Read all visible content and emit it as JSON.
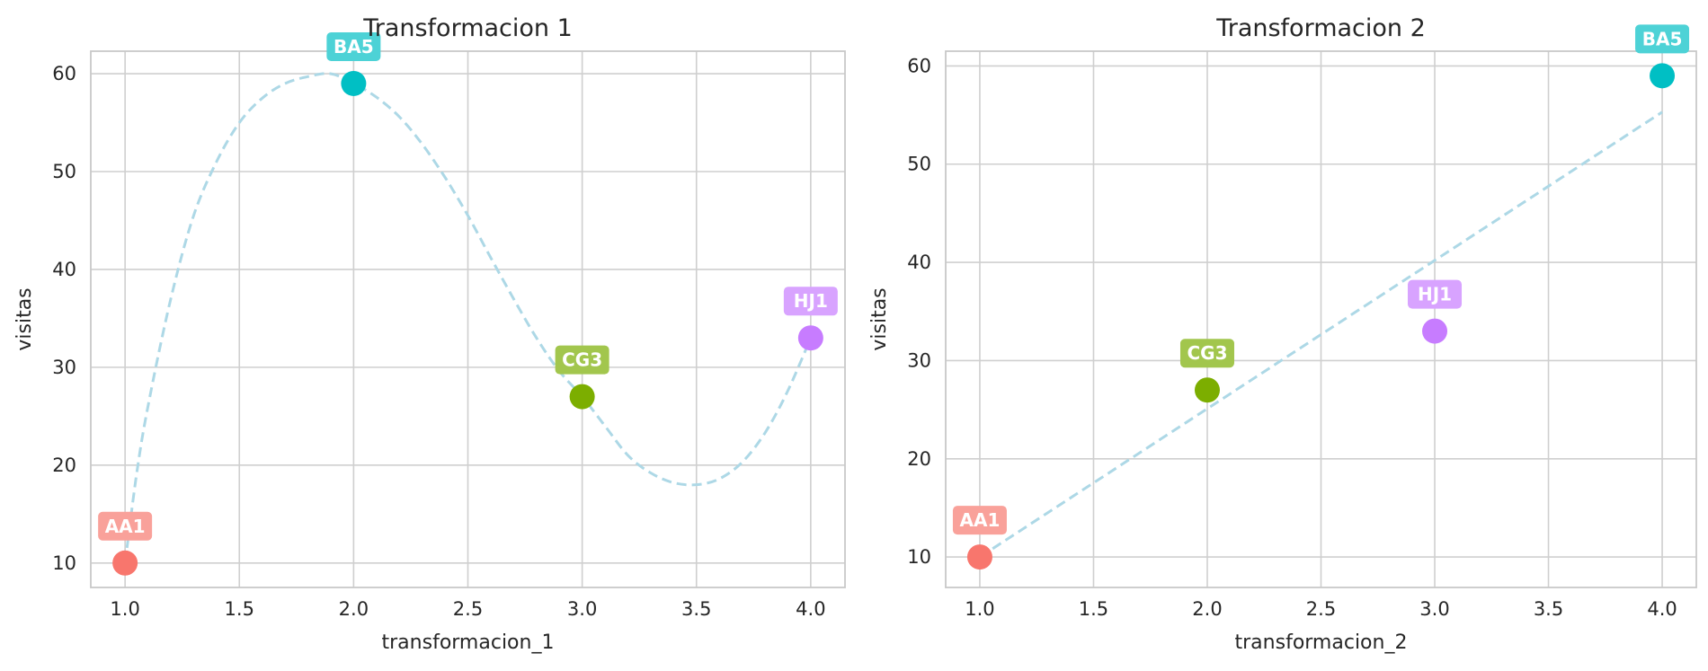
{
  "chart_data": [
    {
      "type": "scatter",
      "title": "Transformacion 1",
      "xlabel": "transformacion_1",
      "ylabel": "visitas",
      "xlim": [
        0.85,
        4.15
      ],
      "ylim": [
        7.5,
        62.3
      ],
      "xticks": [
        1.0,
        1.5,
        2.0,
        2.5,
        3.0,
        3.5,
        4.0
      ],
      "xtick_labels": [
        "1.0",
        "1.5",
        "2.0",
        "2.5",
        "3.0",
        "3.5",
        "4.0"
      ],
      "yticks": [
        10,
        20,
        30,
        40,
        50,
        60
      ],
      "ytick_labels": [
        "10",
        "20",
        "30",
        "40",
        "50",
        "60"
      ],
      "grid": true,
      "points": [
        {
          "label": "AA1",
          "x": 1.0,
          "y": 10,
          "color": "#f8766d",
          "label_color": "#f9a19a"
        },
        {
          "label": "BA5",
          "x": 2.0,
          "y": 59,
          "color": "#00bfc4",
          "label_color": "#4dd2d6"
        },
        {
          "label": "CG3",
          "x": 3.0,
          "y": 27,
          "color": "#7cae00",
          "label_color": "#a2c64d"
        },
        {
          "label": "HJ1",
          "x": 4.0,
          "y": 33,
          "color": "#c77cff",
          "label_color": "#d8a3ff"
        }
      ],
      "fit": {
        "style": "dashed",
        "color": "#add8e6",
        "kind": "cubic",
        "curve_points": [
          [
            1.0,
            10
          ],
          [
            1.05,
            19
          ],
          [
            1.1,
            26
          ],
          [
            1.2,
            37
          ],
          [
            1.3,
            45.5
          ],
          [
            1.4,
            51
          ],
          [
            1.5,
            55
          ],
          [
            1.6,
            57.5
          ],
          [
            1.7,
            59
          ],
          [
            1.8,
            59.7
          ],
          [
            1.9,
            60
          ],
          [
            2.0,
            59
          ],
          [
            2.1,
            57.6
          ],
          [
            2.2,
            55.6
          ],
          [
            2.3,
            52.8
          ],
          [
            2.4,
            49.4
          ],
          [
            2.5,
            45.5
          ],
          [
            2.6,
            41.2
          ],
          [
            2.7,
            37
          ],
          [
            2.8,
            33
          ],
          [
            2.9,
            29.6
          ],
          [
            3.0,
            27
          ],
          [
            3.1,
            24
          ],
          [
            3.2,
            21
          ],
          [
            3.3,
            19.2
          ],
          [
            3.4,
            18.2
          ],
          [
            3.5,
            18
          ],
          [
            3.6,
            18.6
          ],
          [
            3.7,
            20.3
          ],
          [
            3.8,
            23.3
          ],
          [
            3.9,
            27.6
          ],
          [
            4.0,
            33
          ]
        ]
      }
    },
    {
      "type": "scatter",
      "title": "Transformacion 2",
      "xlabel": "transformacion_2",
      "ylabel": "visitas",
      "xlim": [
        0.85,
        4.15
      ],
      "ylim": [
        6.9,
        61.5
      ],
      "xticks": [
        1.0,
        1.5,
        2.0,
        2.5,
        3.0,
        3.5,
        4.0
      ],
      "xtick_labels": [
        "1.0",
        "1.5",
        "2.0",
        "2.5",
        "3.0",
        "3.5",
        "4.0"
      ],
      "yticks": [
        10,
        20,
        30,
        40,
        50,
        60
      ],
      "ytick_labels": [
        "10",
        "20",
        "30",
        "40",
        "50",
        "60"
      ],
      "grid": true,
      "points": [
        {
          "label": "AA1",
          "x": 1.0,
          "y": 10,
          "color": "#f8766d",
          "label_color": "#f9a19a"
        },
        {
          "label": "CG3",
          "x": 2.0,
          "y": 27,
          "color": "#7cae00",
          "label_color": "#a2c64d"
        },
        {
          "label": "HJ1",
          "x": 3.0,
          "y": 33,
          "color": "#c77cff",
          "label_color": "#d8a3ff"
        },
        {
          "label": "BA5",
          "x": 4.0,
          "y": 59,
          "color": "#00bfc4",
          "label_color": "#4dd2d6"
        }
      ],
      "fit": {
        "style": "dashed",
        "color": "#add8e6",
        "kind": "linear",
        "curve_points": [
          [
            1.0,
            10
          ],
          [
            4.0,
            55.3
          ]
        ]
      }
    }
  ]
}
